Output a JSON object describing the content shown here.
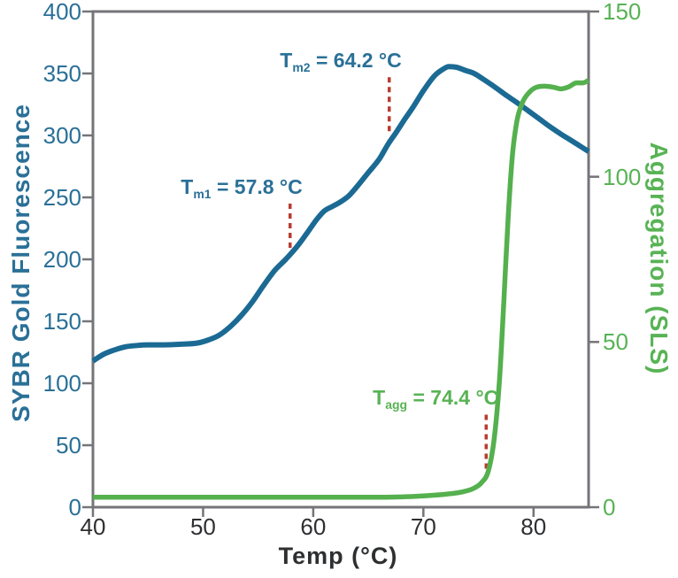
{
  "figure": {
    "background": "#ffffff",
    "spine_color": "#747578",
    "annotation_dash_color": "#b83c30",
    "x_text_color": "#2e2f31"
  },
  "chart_data": {
    "type": "line",
    "title": "",
    "grid": false,
    "legend": "none",
    "x_axis": {
      "label": "Temp (°C)",
      "min": 40,
      "max": 85,
      "ticks": [
        40,
        50,
        60,
        70,
        80
      ]
    },
    "y_axis_left": {
      "label": "SYBR Gold Fluorescence",
      "min": 0,
      "max": 400,
      "ticks": [
        400,
        350,
        300,
        250,
        200,
        150,
        100,
        50,
        0
      ],
      "color": "#2a7097"
    },
    "y_axis_right": {
      "label": "Aggregation (SLS)",
      "min": 0,
      "max": 150,
      "ticks": [
        150,
        100,
        50,
        0
      ],
      "color": "#58b355"
    },
    "series": [
      {
        "name": "SYBR Gold Fluorescence melting curve",
        "axis": "left",
        "color": "#1b6a94",
        "width": 6,
        "points": [
          [
            40,
            118
          ],
          [
            41,
            123.5
          ],
          [
            42,
            127
          ],
          [
            43,
            129.5
          ],
          [
            44,
            130.5
          ],
          [
            45,
            131
          ],
          [
            46.5,
            131
          ],
          [
            48,
            131.5
          ],
          [
            49.5,
            132.5
          ],
          [
            50.5,
            135
          ],
          [
            51.5,
            139
          ],
          [
            52.5,
            146
          ],
          [
            53.5,
            155
          ],
          [
            54.5,
            166
          ],
          [
            55.5,
            179
          ],
          [
            56.5,
            191
          ],
          [
            57.5,
            200
          ],
          [
            58.5,
            210
          ],
          [
            59.5,
            222
          ],
          [
            60.3,
            232
          ],
          [
            61,
            239
          ],
          [
            61.8,
            243
          ],
          [
            62.5,
            246.5
          ],
          [
            63.2,
            251
          ],
          [
            64,
            259
          ],
          [
            65,
            270
          ],
          [
            66,
            281
          ],
          [
            66.8,
            293
          ],
          [
            67.5,
            302
          ],
          [
            68.3,
            313
          ],
          [
            69,
            322
          ],
          [
            70,
            336
          ],
          [
            71,
            348
          ],
          [
            71.8,
            353.5
          ],
          [
            72.3,
            355.5
          ],
          [
            73,
            355
          ],
          [
            73.8,
            352.5
          ],
          [
            74.6,
            350
          ],
          [
            75.5,
            345
          ],
          [
            76.5,
            339
          ],
          [
            77.5,
            332.5
          ],
          [
            78.5,
            326.5
          ],
          [
            79.5,
            320
          ],
          [
            80.5,
            313.5
          ],
          [
            81.5,
            307
          ],
          [
            82.5,
            301
          ],
          [
            83.5,
            295.5
          ],
          [
            84.3,
            291
          ],
          [
            85,
            287
          ]
        ]
      },
      {
        "name": "Aggregation (SLS)",
        "axis": "right",
        "color": "#55b04e",
        "width": 5.5,
        "points": [
          [
            40,
            3
          ],
          [
            44,
            3
          ],
          [
            48,
            3
          ],
          [
            52,
            3
          ],
          [
            56,
            3
          ],
          [
            60,
            3
          ],
          [
            63,
            3
          ],
          [
            66,
            3
          ],
          [
            68,
            3.1
          ],
          [
            70,
            3.4
          ],
          [
            72,
            3.9
          ],
          [
            73.5,
            4.6
          ],
          [
            74.5,
            5.6
          ],
          [
            75.3,
            7.5
          ],
          [
            75.9,
            11
          ],
          [
            76.4,
            20
          ],
          [
            76.9,
            38
          ],
          [
            77.3,
            62
          ],
          [
            77.7,
            88
          ],
          [
            78.1,
            107
          ],
          [
            78.5,
            117
          ],
          [
            79,
            122.5
          ],
          [
            79.6,
            125.5
          ],
          [
            80.2,
            127
          ],
          [
            81,
            127.4
          ],
          [
            81.8,
            127.1
          ],
          [
            82.5,
            126.6
          ],
          [
            83.2,
            127.2
          ],
          [
            83.9,
            128.4
          ],
          [
            84.5,
            128.4
          ],
          [
            85,
            129.2
          ]
        ]
      }
    ],
    "annotations": [
      {
        "id": "tm1",
        "base": "T",
        "sub": "m1",
        "rest": " = 57.8 °C",
        "value_celsius": 57.8,
        "color": "#2a7097",
        "dash": {
          "x": 57.9,
          "axis": "left",
          "y_from": 203,
          "y_to": 245
        }
      },
      {
        "id": "tm2",
        "base": "T",
        "sub": "m2",
        "rest": " = 64.2 °C",
        "value_celsius": 64.2,
        "color": "#2a7097",
        "dash": {
          "x": 66.9,
          "axis": "left",
          "y_from": 301,
          "y_to": 347
        }
      },
      {
        "id": "tagg",
        "base": "T",
        "sub": "agg",
        "rest": " = 74.4 °C",
        "value_celsius": 74.4,
        "color": "#58b355",
        "dash": {
          "x": 75.7,
          "axis": "right",
          "y_from": 10.5,
          "y_to": 28
        }
      }
    ]
  }
}
